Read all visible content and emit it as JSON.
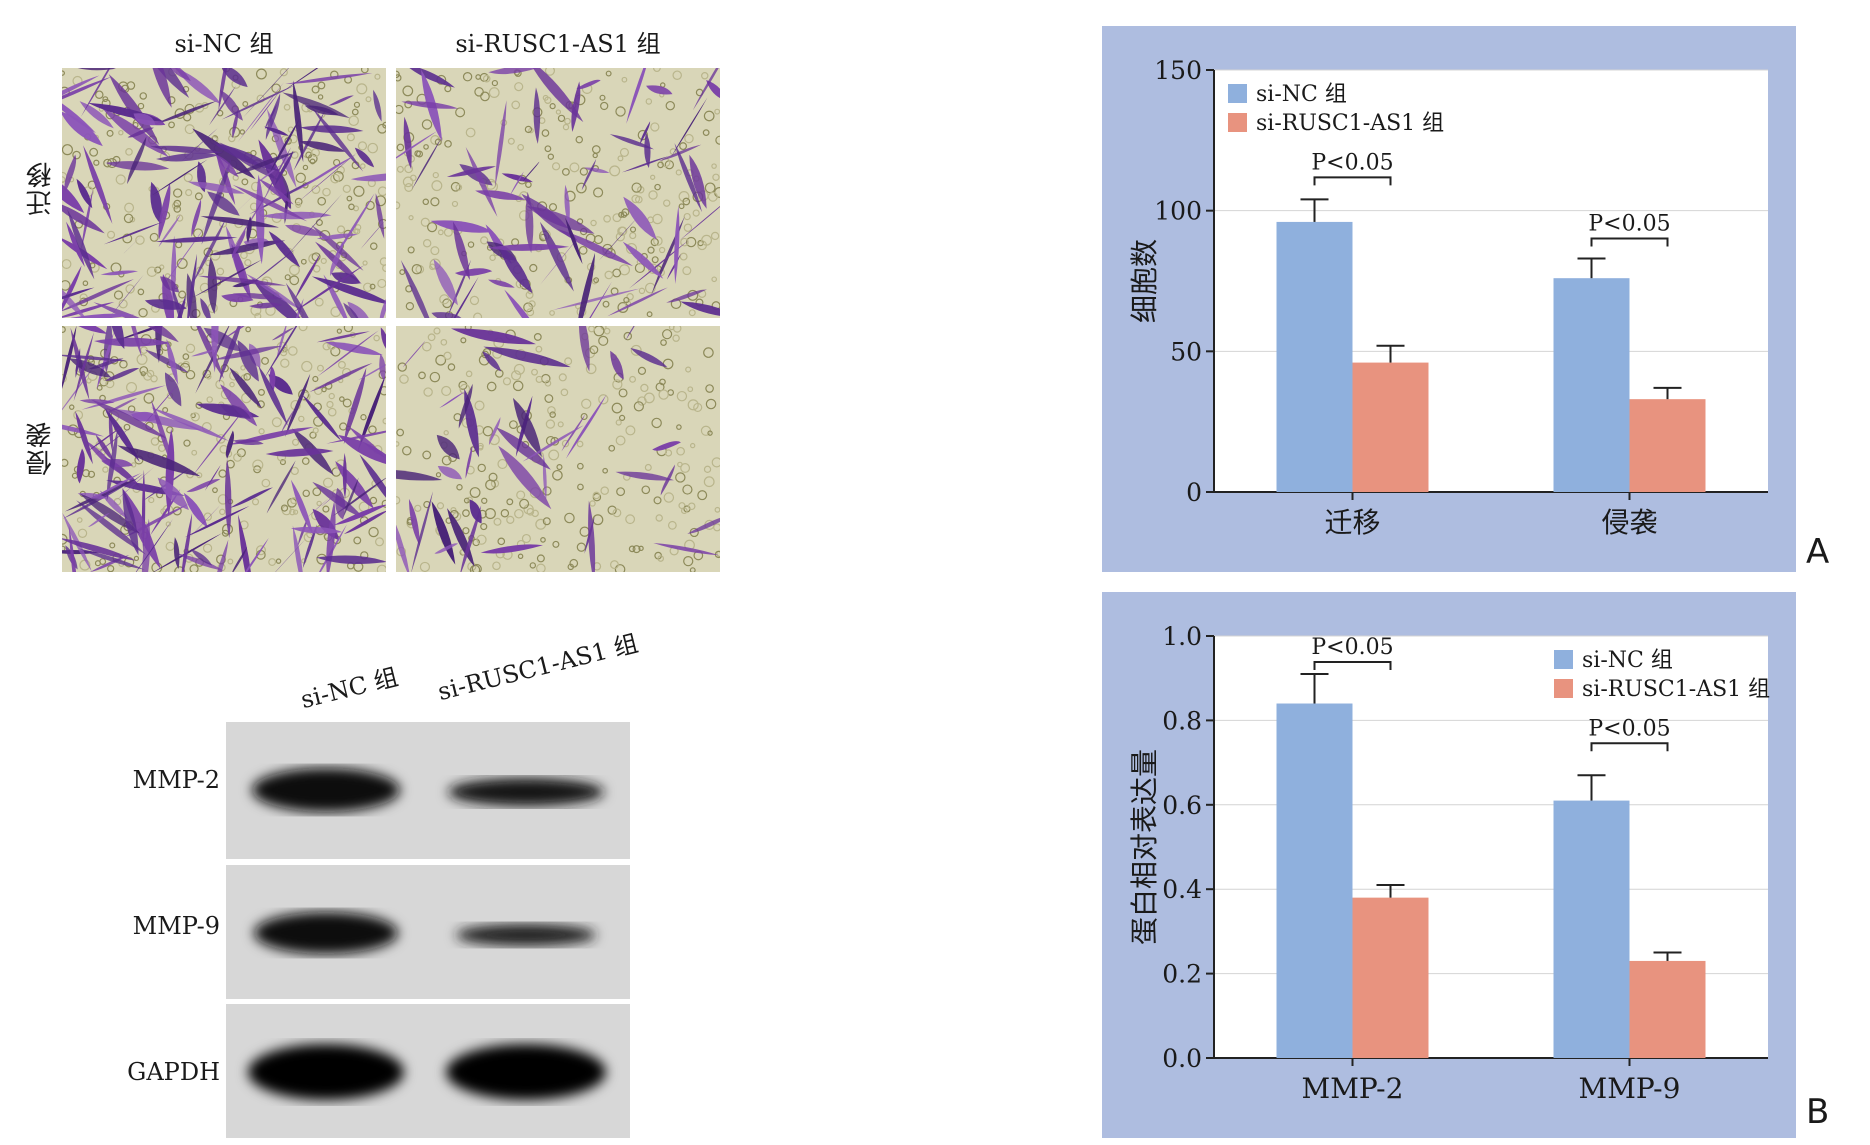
{
  "micrograph": {
    "columns": [
      "si-NC 组",
      "si-RUSC1-AS1 组"
    ],
    "rows": [
      "迁移",
      "侵袭"
    ]
  },
  "blot": {
    "columns": [
      "si-NC 组",
      "si-RUSC1-AS1 组"
    ],
    "bands": [
      "MMP-2",
      "MMP-9",
      "GAPDH"
    ]
  },
  "colors": {
    "si_nc": "#8fb0dd",
    "si_rusc1": "#e8937f",
    "frame": "#aebde0"
  },
  "chart_data": [
    {
      "type": "bar",
      "panel": "A",
      "categories": [
        "迁移",
        "侵袭"
      ],
      "series": [
        {
          "name": "si-NC 组",
          "values": [
            96,
            76
          ],
          "errors": [
            8,
            7
          ]
        },
        {
          "name": "si-RUSC1-AS1 组",
          "values": [
            46,
            33
          ],
          "errors": [
            6,
            4
          ]
        }
      ],
      "ylabel": "细胞数",
      "ylim": [
        0,
        150
      ],
      "yticks": [
        0,
        50,
        100,
        150
      ],
      "annotations": [
        "P<0.05",
        "P<0.05"
      ],
      "legend": "top-left",
      "grid": true
    },
    {
      "type": "bar",
      "panel": "B",
      "categories": [
        "MMP-2",
        "MMP-9"
      ],
      "series": [
        {
          "name": "si-NC 组",
          "values": [
            0.84,
            0.61
          ],
          "errors": [
            0.07,
            0.06
          ]
        },
        {
          "name": "si-RUSC1-AS1 组",
          "values": [
            0.38,
            0.23
          ],
          "errors": [
            0.03,
            0.02
          ]
        }
      ],
      "ylabel": "蛋白相对表达量",
      "ylim": [
        0,
        1.0
      ],
      "yticks": [
        "0.0",
        "0.2",
        "0.4",
        "0.6",
        "0.8",
        "1.0"
      ],
      "annotations": [
        "P<0.05",
        "P<0.05"
      ],
      "legend": "top-right",
      "grid": true
    }
  ]
}
